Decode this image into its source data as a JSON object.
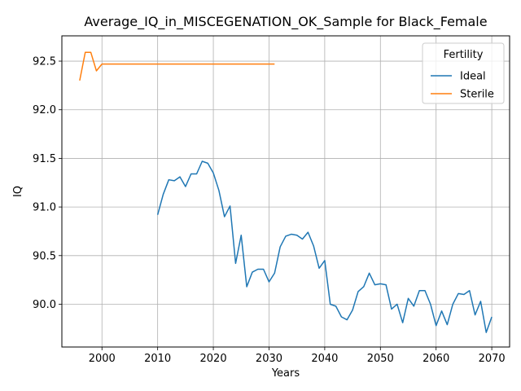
{
  "chart_data": {
    "type": "line",
    "title": "Average_IQ_in_MISCEGENATION_OK_Sample for Black_Female",
    "xlabel": "Years",
    "ylabel": "IQ",
    "xlim": [
      1992.8,
      2073.2
    ],
    "ylim": [
      89.56,
      92.76
    ],
    "xticks": [
      2000,
      2010,
      2020,
      2030,
      2040,
      2050,
      2060,
      2070
    ],
    "yticks": [
      90.0,
      90.5,
      91.0,
      91.5,
      92.0,
      92.5
    ],
    "grid": true,
    "legend": {
      "title": "Fertility",
      "placement": "top-right"
    },
    "series": [
      {
        "name": "Ideal",
        "color": "#1f77b4",
        "x": [
          2010,
          2011,
          2012,
          2013,
          2014,
          2015,
          2016,
          2017,
          2018,
          2019,
          2020,
          2021,
          2022,
          2023,
          2024,
          2025,
          2026,
          2027,
          2028,
          2029,
          2030,
          2031,
          2032,
          2033,
          2034,
          2035,
          2036,
          2037,
          2038,
          2039,
          2040,
          2041,
          2042,
          2043,
          2044,
          2045,
          2046,
          2047,
          2048,
          2049,
          2050,
          2051,
          2052,
          2053,
          2054,
          2055,
          2056,
          2057,
          2058,
          2059,
          2060,
          2061,
          2062,
          2063,
          2064,
          2065,
          2066,
          2067,
          2068,
          2069,
          2070
        ],
        "y": [
          90.92,
          91.13,
          91.28,
          91.27,
          91.31,
          91.21,
          91.34,
          91.34,
          91.47,
          91.45,
          91.35,
          91.17,
          90.9,
          91.01,
          90.42,
          90.71,
          90.18,
          90.33,
          90.36,
          90.36,
          90.23,
          90.32,
          90.59,
          90.7,
          90.72,
          90.71,
          90.67,
          90.74,
          90.6,
          90.37,
          90.45,
          90.0,
          89.98,
          89.87,
          89.84,
          89.94,
          90.13,
          90.18,
          90.32,
          90.2,
          90.21,
          90.2,
          89.95,
          90.0,
          89.81,
          90.06,
          89.98,
          90.14,
          90.14,
          90.0,
          89.78,
          89.93,
          89.79,
          90.0,
          90.11,
          90.1,
          90.14,
          89.89,
          90.03,
          89.71,
          89.87
        ]
      },
      {
        "name": "Sterile",
        "color": "#ff7f0e",
        "x": [
          1996,
          1997,
          1998,
          1999,
          2000,
          2001,
          2002,
          2003,
          2004,
          2005,
          2006,
          2007,
          2008,
          2009,
          2010,
          2011,
          2012,
          2013,
          2014,
          2015,
          2016,
          2017,
          2018,
          2019,
          2020,
          2021,
          2022,
          2023,
          2024,
          2025,
          2026,
          2027,
          2028,
          2029,
          2030,
          2031
        ],
        "y": [
          92.3,
          92.59,
          92.59,
          92.4,
          92.47,
          92.47,
          92.47,
          92.47,
          92.47,
          92.47,
          92.47,
          92.47,
          92.47,
          92.47,
          92.47,
          92.47,
          92.47,
          92.47,
          92.47,
          92.47,
          92.47,
          92.47,
          92.47,
          92.47,
          92.47,
          92.47,
          92.47,
          92.47,
          92.47,
          92.47,
          92.47,
          92.47,
          92.47,
          92.47,
          92.47,
          92.47
        ]
      }
    ]
  }
}
